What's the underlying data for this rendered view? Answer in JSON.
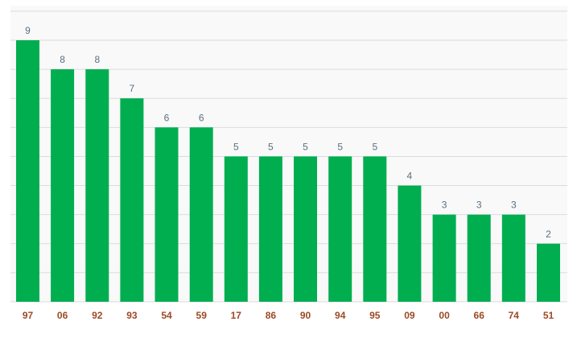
{
  "chart_data": {
    "type": "bar",
    "categories": [
      "97",
      "06",
      "92",
      "93",
      "54",
      "59",
      "17",
      "86",
      "90",
      "94",
      "95",
      "09",
      "00",
      "66",
      "74",
      "51"
    ],
    "values": [
      9,
      8,
      8,
      7,
      6,
      6,
      5,
      5,
      5,
      5,
      5,
      4,
      3,
      3,
      3,
      2
    ],
    "ylim": [
      0,
      10
    ],
    "grid": true,
    "legend": "none",
    "data_labels": true,
    "title": "",
    "xlabel": "",
    "ylabel": ""
  },
  "colors": {
    "bar": "#00ae50",
    "plot_background": "#f9f9f9",
    "grid": "#dcdcdc",
    "value_label": "#5b6f80",
    "category_label": "#9b4a26"
  }
}
